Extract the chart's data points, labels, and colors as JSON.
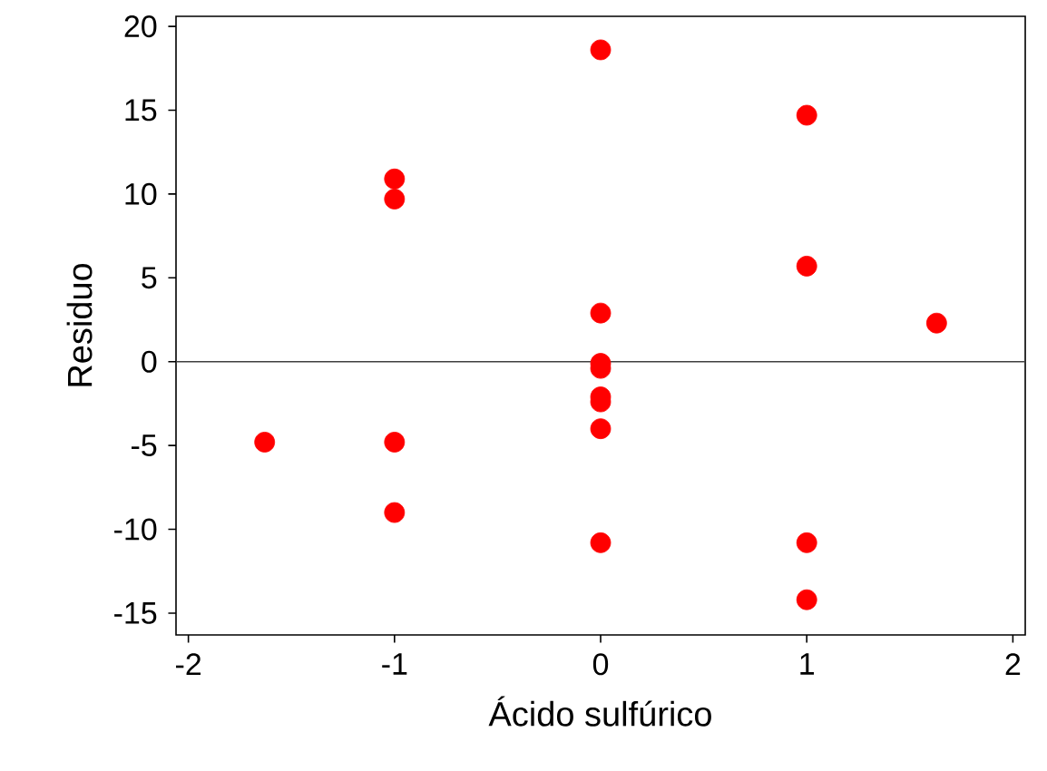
{
  "chart_data": {
    "type": "scatter",
    "xlabel": "Ácido sulfúrico",
    "ylabel": "Residuo",
    "x": [
      -1.63,
      -1,
      -1,
      -1,
      -1,
      0,
      0,
      0,
      0,
      0,
      0,
      0,
      0,
      1,
      1,
      1,
      1,
      1.63
    ],
    "series": [
      {
        "color": "#ff0000",
        "values": [
          -4.8,
          10.9,
          9.7,
          -4.8,
          -9.0,
          18.6,
          2.9,
          -0.1,
          -0.4,
          -2.1,
          -2.4,
          -4.0,
          -10.8,
          14.7,
          5.7,
          -10.8,
          -14.2,
          2.3
        ]
      }
    ],
    "xlim": [
      -2.06,
      2.06
    ],
    "ylim": [
      -16.3,
      20.6
    ],
    "xticks": [
      -2,
      -1,
      0,
      1,
      2
    ],
    "yticks": [
      -15,
      -10,
      -5,
      0,
      5,
      10,
      15,
      20
    ],
    "ref_lines": [
      {
        "axis": "y",
        "value": 0,
        "color": "#404040"
      }
    ],
    "marker": "circle",
    "grid": false
  }
}
